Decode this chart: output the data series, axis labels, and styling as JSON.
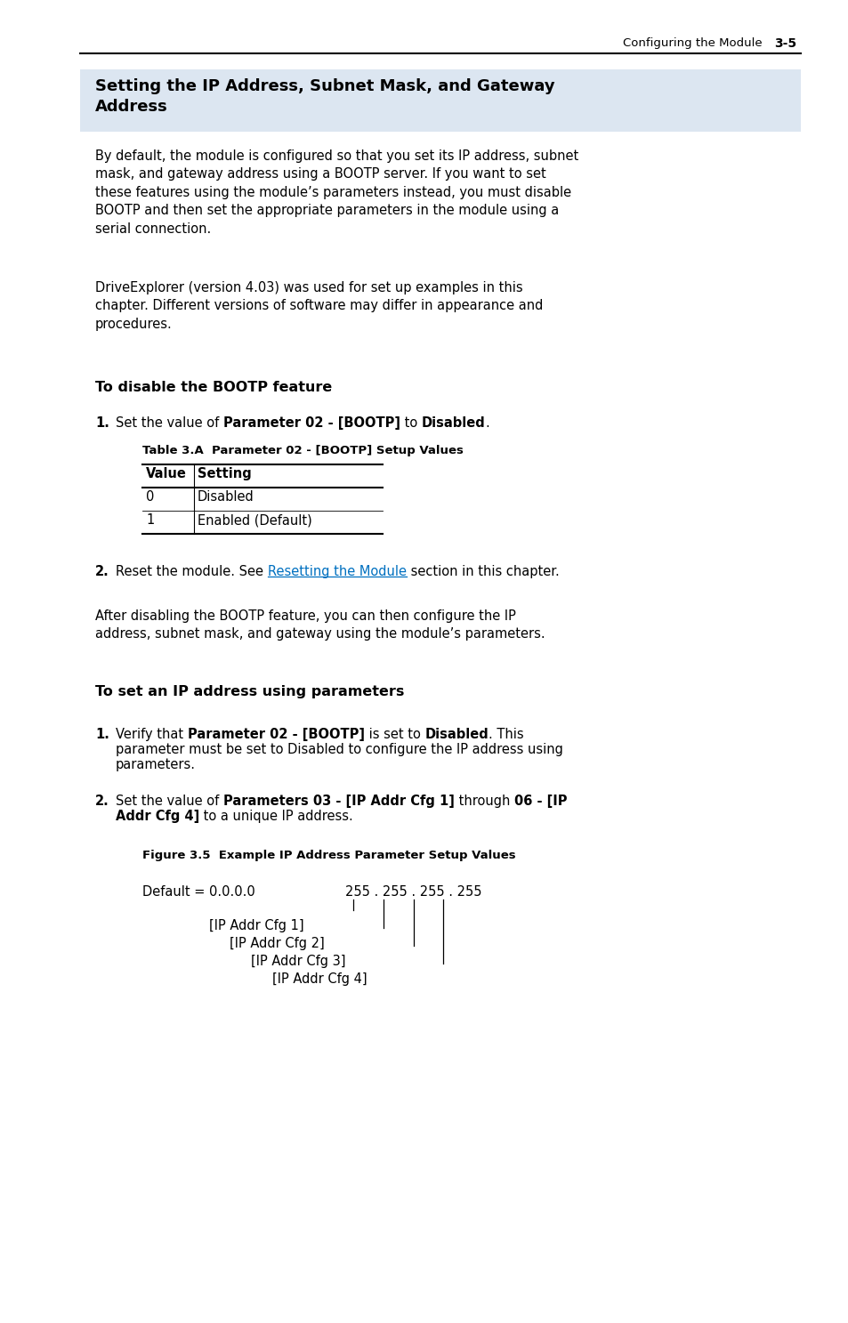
{
  "bg_color": "#ffffff",
  "header_bg": "#dce6f1",
  "page_header_text": "Configuring the Module",
  "page_number": "3-5",
  "section_title": "Setting the IP Address, Subnet Mask, and Gateway\nAddress",
  "para1": "By default, the module is configured so that you set its IP address, subnet\nmask, and gateway address using a BOOTP server. If you want to set\nthese features using the module’s parameters instead, you must disable\nBOOTP and then set the appropriate parameters in the module using a\nserial connection.",
  "para2": "DriveExplorer (version 4.03) was used for set up examples in this\nchapter. Different versions of software may differ in appearance and\nprocedures.",
  "section2_title": "To disable the BOOTP feature",
  "table_title": "Table 3.A  Parameter 02 - [BOOTP] Setup Values",
  "table_headers": [
    "Value",
    "Setting"
  ],
  "table_rows": [
    [
      "0",
      "Disabled"
    ],
    [
      "1",
      "Enabled (Default)"
    ]
  ],
  "link_color": "#0070C0",
  "para3": "After disabling the BOOTP feature, you can then configure the IP\naddress, subnet mask, and gateway using the module’s parameters.",
  "section3_title": "To set an IP address using parameters",
  "fig_title": "Figure 3.5  Example IP Address Parameter Setup Values",
  "fig_default": "Default = 0.0.0.0",
  "fig_ip": "255 . 255 . 255 . 255",
  "fig_labels": [
    "[IP Addr Cfg 1]",
    "[IP Addr Cfg 2]",
    "[IP Addr Cfg 3]",
    "[IP Addr Cfg 4]"
  ]
}
